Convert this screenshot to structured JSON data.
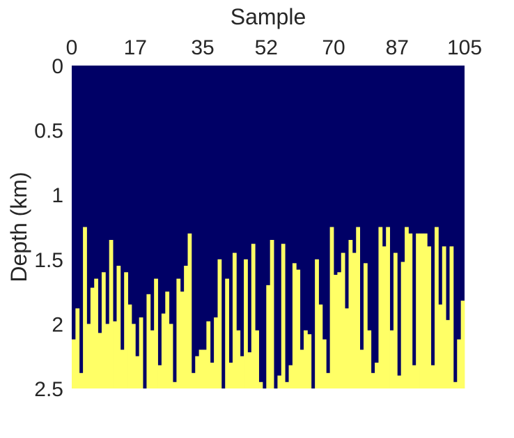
{
  "colors": {
    "background_rock": "#000066",
    "fill": "#FFFF66",
    "text": "#262626"
  },
  "chart_data": {
    "type": "heatmap",
    "description_of_fill": "Per-sample depth (km) where the lower filled region begins; filled from that depth down to 2.5 km",
    "xlabel": "Sample",
    "ylabel": "Depth (km)",
    "x_axis_position": "top",
    "y_axis_direction": "reversed",
    "xlim": [
      0,
      105
    ],
    "ylim": [
      0,
      2.5
    ],
    "x_ticks": [
      "0",
      "17",
      "35",
      "52",
      "70",
      "87",
      "105"
    ],
    "y_ticks": [
      "0",
      "0.5",
      "1",
      "1.5",
      "2",
      "2.5"
    ],
    "grid": false,
    "samples": 105,
    "top_depth_km": [
      2.12,
      1.88,
      2.38,
      1.25,
      2.0,
      1.72,
      1.65,
      2.07,
      1.6,
      2.0,
      1.35,
      1.98,
      1.55,
      2.2,
      1.6,
      1.85,
      2.0,
      2.25,
      1.95,
      2.5,
      1.77,
      2.05,
      1.65,
      2.32,
      1.92,
      1.75,
      2.0,
      2.45,
      1.65,
      1.75,
      1.55,
      1.3,
      2.38,
      2.25,
      2.2,
      2.2,
      1.98,
      2.3,
      1.95,
      1.5,
      2.5,
      1.65,
      2.3,
      1.45,
      2.05,
      2.25,
      1.5,
      2.22,
      1.38,
      2.05,
      2.45,
      2.5,
      1.7,
      1.35,
      2.5,
      2.4,
      1.38,
      2.45,
      2.32,
      1.53,
      1.58,
      2.2,
      2.05,
      2.08,
      2.5,
      1.5,
      1.85,
      2.12,
      2.38,
      1.25,
      1.62,
      1.6,
      1.45,
      1.88,
      1.35,
      1.45,
      1.25,
      2.2,
      1.53,
      2.05,
      2.38,
      2.3,
      1.25,
      1.4,
      1.25,
      2.05,
      1.45,
      2.4,
      1.52,
      1.25,
      1.3,
      2.32,
      1.3,
      1.3,
      1.3,
      1.4,
      2.32,
      1.25,
      1.85,
      1.4,
      1.97,
      1.4,
      2.45,
      2.12,
      1.82
    ]
  }
}
